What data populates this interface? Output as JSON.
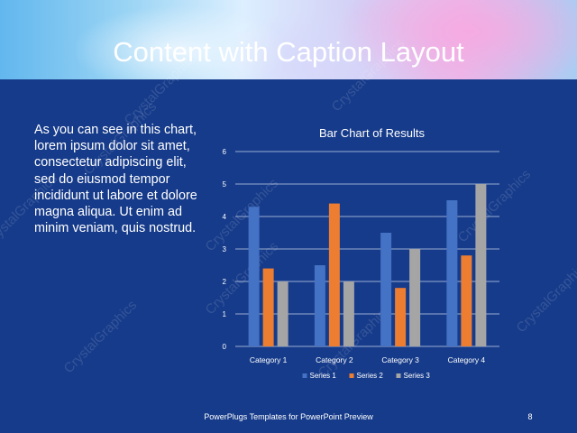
{
  "slide": {
    "title": "Content with Caption Layout",
    "caption": "As you can see in this chart, lorem ipsum dolor sit amet, consectetur adipiscing elit, sed do eiusmod tempor incididunt ut labore et dolore magna aliqua. Ut enim ad minim veniam, quis nostrud.",
    "footer": "PowerPlugs Templates for PowerPoint Preview",
    "page_number": "8",
    "watermark": "CrystalGraphics",
    "background_color": "#163b8a"
  },
  "chart_data": {
    "type": "bar",
    "title": "Bar Chart of Results",
    "categories": [
      "Category 1",
      "Category 2",
      "Category 3",
      "Category 4"
    ],
    "series": [
      {
        "name": "Series 1",
        "color": "#4472c4",
        "values": [
          4.3,
          2.5,
          3.5,
          4.5
        ]
      },
      {
        "name": "Series 2",
        "color": "#ed7d31",
        "values": [
          2.4,
          4.4,
          1.8,
          2.8
        ]
      },
      {
        "name": "Series 3",
        "color": "#a5a5a5",
        "values": [
          2,
          2,
          3,
          5
        ]
      }
    ],
    "ylim": [
      0,
      6
    ],
    "yticks": [
      "0",
      "1",
      "2",
      "3",
      "4",
      "5",
      "6"
    ],
    "grid": true,
    "legend_position": "bottom"
  }
}
